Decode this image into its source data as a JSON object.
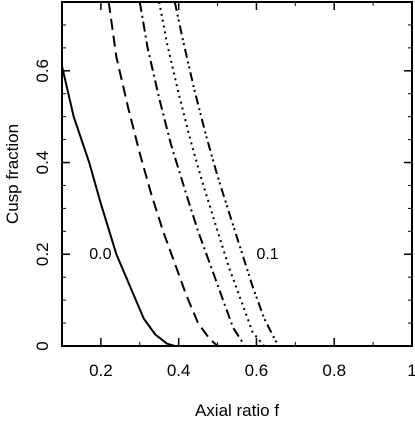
{
  "chart_data": {
    "type": "line",
    "title": "",
    "xlabel": "Axial ratio f",
    "ylabel": "Cusp fraction",
    "xlim": [
      0.1,
      1.0
    ],
    "ylim": [
      0,
      0.75
    ],
    "xticks": [
      0.2,
      0.4,
      0.6,
      0.8,
      1
    ],
    "xtick_labels": [
      "0.2",
      "0.4",
      "0.6",
      "0.8",
      "1"
    ],
    "yticks": [
      0,
      0.2,
      0.4,
      0.6
    ],
    "ytick_labels": [
      "0",
      "0.2",
      "0.4",
      "0.6"
    ],
    "grid": false,
    "legend": "none",
    "annotations": [
      {
        "text": "0.0",
        "x": 0.17,
        "y": 0.19
      },
      {
        "text": "0.1",
        "x": 0.6,
        "y": 0.19
      }
    ],
    "series": [
      {
        "style": "solid",
        "x": [
          0.1,
          0.13,
          0.17,
          0.2,
          0.24,
          0.28,
          0.31,
          0.34,
          0.37,
          0.39
        ],
        "y": [
          0.61,
          0.5,
          0.4,
          0.31,
          0.2,
          0.12,
          0.06,
          0.025,
          0.005,
          0.0
        ]
      },
      {
        "style": "dashed",
        "x": [
          0.22,
          0.24,
          0.27,
          0.3,
          0.33,
          0.36,
          0.39,
          0.42,
          0.45,
          0.48,
          0.5
        ],
        "y": [
          0.75,
          0.63,
          0.52,
          0.42,
          0.33,
          0.25,
          0.18,
          0.11,
          0.05,
          0.015,
          0.0
        ]
      },
      {
        "style": "dashdot",
        "x": [
          0.3,
          0.32,
          0.35,
          0.38,
          0.42,
          0.45,
          0.48,
          0.51,
          0.54,
          0.57
        ],
        "y": [
          0.75,
          0.65,
          0.54,
          0.44,
          0.33,
          0.25,
          0.18,
          0.11,
          0.04,
          0.0
        ]
      },
      {
        "style": "dotted",
        "x": [
          0.35,
          0.37,
          0.4,
          0.43,
          0.46,
          0.5,
          0.53,
          0.56,
          0.59,
          0.62
        ],
        "y": [
          0.75,
          0.66,
          0.55,
          0.45,
          0.36,
          0.25,
          0.17,
          0.1,
          0.03,
          0.0
        ]
      },
      {
        "style": "dashdotdot",
        "x": [
          0.39,
          0.41,
          0.44,
          0.47,
          0.5,
          0.53,
          0.56,
          0.59,
          0.62,
          0.65,
          0.66
        ],
        "y": [
          0.75,
          0.67,
          0.56,
          0.46,
          0.37,
          0.29,
          0.21,
          0.13,
          0.06,
          0.01,
          0.0
        ]
      }
    ]
  }
}
